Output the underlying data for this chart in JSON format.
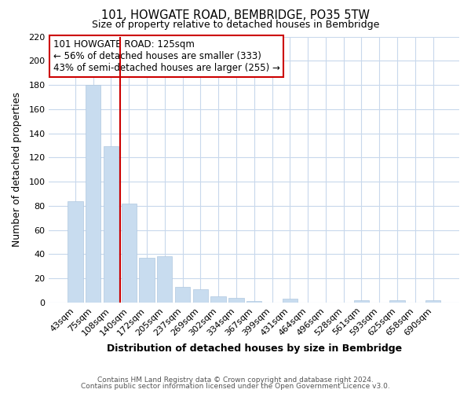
{
  "title": "101, HOWGATE ROAD, BEMBRIDGE, PO35 5TW",
  "subtitle": "Size of property relative to detached houses in Bembridge",
  "xlabel": "Distribution of detached houses by size in Bembridge",
  "ylabel": "Number of detached properties",
  "bar_labels": [
    "43sqm",
    "75sqm",
    "108sqm",
    "140sqm",
    "172sqm",
    "205sqm",
    "237sqm",
    "269sqm",
    "302sqm",
    "334sqm",
    "367sqm",
    "399sqm",
    "431sqm",
    "464sqm",
    "496sqm",
    "528sqm",
    "561sqm",
    "593sqm",
    "625sqm",
    "658sqm",
    "690sqm"
  ],
  "bar_values": [
    84,
    180,
    129,
    82,
    37,
    38,
    13,
    11,
    5,
    4,
    1,
    0,
    3,
    0,
    0,
    0,
    2,
    0,
    2,
    0,
    2
  ],
  "bar_color": "#c8dcef",
  "bar_edge_color": "#b0c8e0",
  "vline_color": "#cc0000",
  "ylim": [
    0,
    220
  ],
  "yticks": [
    0,
    20,
    40,
    60,
    80,
    100,
    120,
    140,
    160,
    180,
    200,
    220
  ],
  "annotation_title": "101 HOWGATE ROAD: 125sqm",
  "annotation_line1": "← 56% of detached houses are smaller (333)",
  "annotation_line2": "43% of semi-detached houses are larger (255) →",
  "annotation_box_color": "#ffffff",
  "annotation_box_edge": "#cc0000",
  "footer1": "Contains HM Land Registry data © Crown copyright and database right 2024.",
  "footer2": "Contains public sector information licensed under the Open Government Licence v3.0.",
  "grid_color": "#c8d8ec",
  "bg_color": "#ffffff",
  "plot_bg_color": "#ffffff"
}
